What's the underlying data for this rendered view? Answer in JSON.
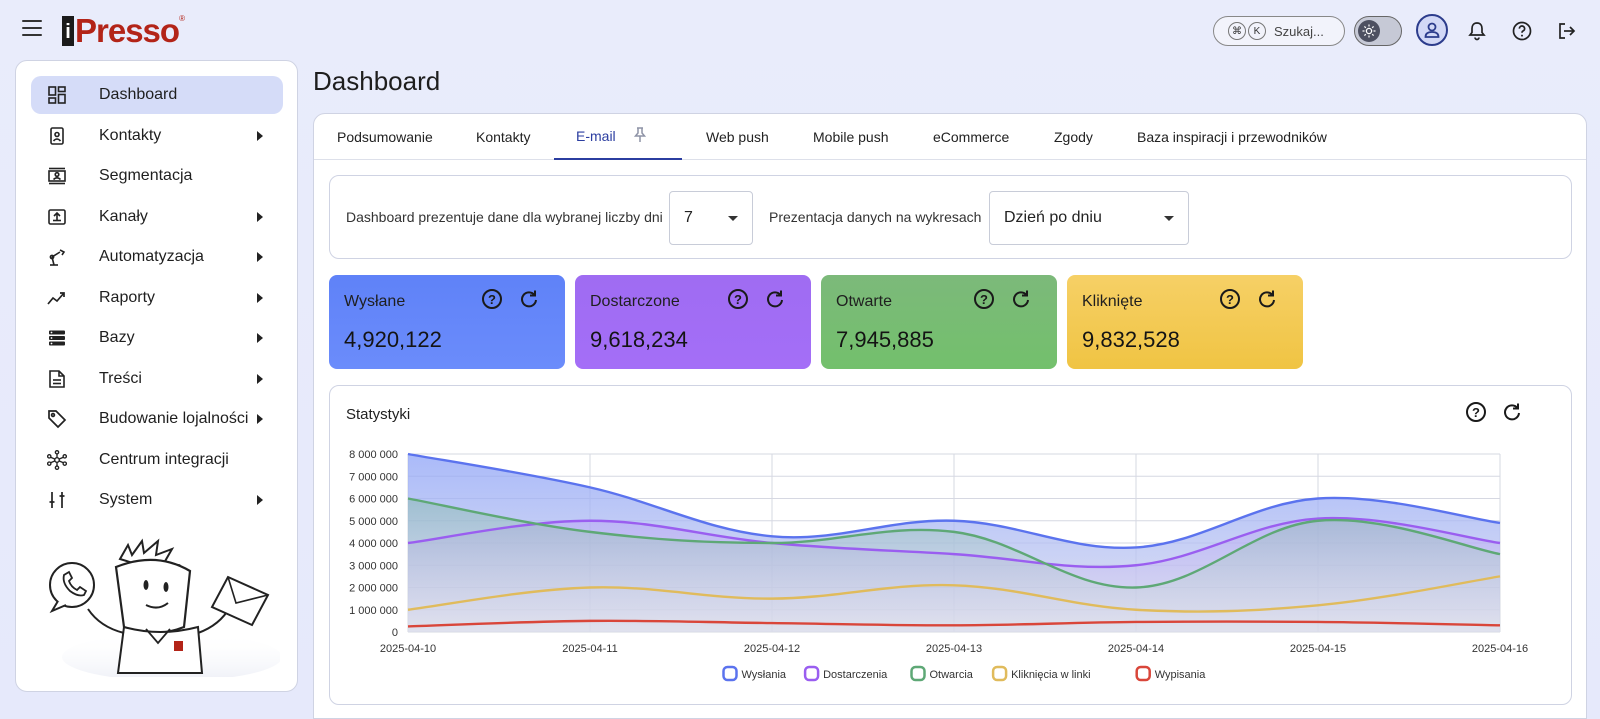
{
  "header": {
    "logo_text": "Presso",
    "logo_i": "i",
    "logo_reg": "®",
    "search": {
      "key1": "⌘",
      "key2": "K",
      "label": "Szukaj..."
    },
    "icons": [
      "sun-icon",
      "user-icon",
      "bell-icon",
      "help-icon",
      "logout-icon"
    ]
  },
  "sidebar": {
    "items": [
      {
        "label": "Dashboard",
        "icon": "dashboard-icon",
        "active": true,
        "submenu": false
      },
      {
        "label": "Kontakty",
        "icon": "contacts-icon",
        "active": false,
        "submenu": true
      },
      {
        "label": "Segmentacja",
        "icon": "segmentation-icon",
        "active": false,
        "submenu": false
      },
      {
        "label": "Kanały",
        "icon": "channels-icon",
        "active": false,
        "submenu": true
      },
      {
        "label": "Automatyzacja",
        "icon": "robot-arm-icon",
        "active": false,
        "submenu": true
      },
      {
        "label": "Raporty",
        "icon": "trend-icon",
        "active": false,
        "submenu": true
      },
      {
        "label": "Bazy",
        "icon": "database-icon",
        "active": false,
        "submenu": true
      },
      {
        "label": "Treści",
        "icon": "document-icon",
        "active": false,
        "submenu": true
      },
      {
        "label": "Budowanie lojalności",
        "icon": "tag-icon",
        "active": false,
        "submenu": true
      },
      {
        "label": "Centrum integracji",
        "icon": "integration-icon",
        "active": false,
        "submenu": false
      },
      {
        "label": "System",
        "icon": "sliders-icon",
        "active": false,
        "submenu": true
      }
    ]
  },
  "main": {
    "title": "Dashboard",
    "tabs": [
      {
        "label": "Podsumowanie",
        "active": false
      },
      {
        "label": "Kontakty",
        "active": false
      },
      {
        "label": "E-mail",
        "active": true
      },
      {
        "label": "Web push",
        "active": false
      },
      {
        "label": "Mobile push",
        "active": false
      },
      {
        "label": "eCommerce",
        "active": false
      },
      {
        "label": "Zgody",
        "active": false
      },
      {
        "label": "Baza inspiracji i przewodników",
        "active": false
      }
    ],
    "filters": {
      "days_label": "Dashboard prezentuje dane dla wybranej liczby dni",
      "days_value": "7",
      "presentation_label": "Prezentacja danych na wykresach",
      "presentation_value": "Dzień po dniu"
    },
    "stats": [
      {
        "title": "Wysłane",
        "value": "4,920,122",
        "color_from": "#5f82f8",
        "color_to": "#6b8cfb"
      },
      {
        "title": "Dostarczone",
        "value": "9,618,234",
        "color_from": "#9f6cf2",
        "color_to": "#a46ef7"
      },
      {
        "title": "Otwarte",
        "value": "7,945,885",
        "color_from": "#7cb97a",
        "color_to": "#73c06c"
      },
      {
        "title": "Kliknięte",
        "value": "9,832,528",
        "color_from": "#f6d066",
        "color_to": "#f0c443"
      }
    ],
    "chart_title": "Statystyki"
  },
  "chart_data": {
    "type": "area",
    "title": "Statystyki",
    "x": [
      "2025-04-10",
      "2025-04-11",
      "2025-04-12",
      "2025-04-13",
      "2025-04-14",
      "2025-04-15",
      "2025-04-16"
    ],
    "ylim": [
      0,
      8000000
    ],
    "yticks": [
      "8 000 000",
      "7 000 000",
      "6 000 000",
      "5 000 000",
      "4 000 000",
      "3 000 000",
      "2 000 000",
      "1 000 000",
      "0"
    ],
    "grid": true,
    "legend_position": "bottom",
    "series": [
      {
        "name": "Wysłania",
        "color": "#5b73ee",
        "values": [
          8000000,
          6500000,
          4300000,
          5000000,
          3800000,
          6000000,
          4900000
        ]
      },
      {
        "name": "Dostarczenia",
        "color": "#9a5ef0",
        "values": [
          4000000,
          5000000,
          4000000,
          3500000,
          3000000,
          5100000,
          4000000
        ]
      },
      {
        "name": "Otwarcia",
        "color": "#5ea876",
        "values": [
          6000000,
          4500000,
          4000000,
          4500000,
          2000000,
          5000000,
          3500000
        ]
      },
      {
        "name": "Kliknięcia w linki",
        "color": "#e0bb5c",
        "values": [
          1000000,
          2000000,
          1500000,
          2100000,
          1000000,
          1200000,
          2500000
        ]
      },
      {
        "name": "Wypisania",
        "color": "#d9463a",
        "values": [
          250000,
          500000,
          400000,
          300000,
          450000,
          450000,
          300000
        ]
      }
    ]
  }
}
